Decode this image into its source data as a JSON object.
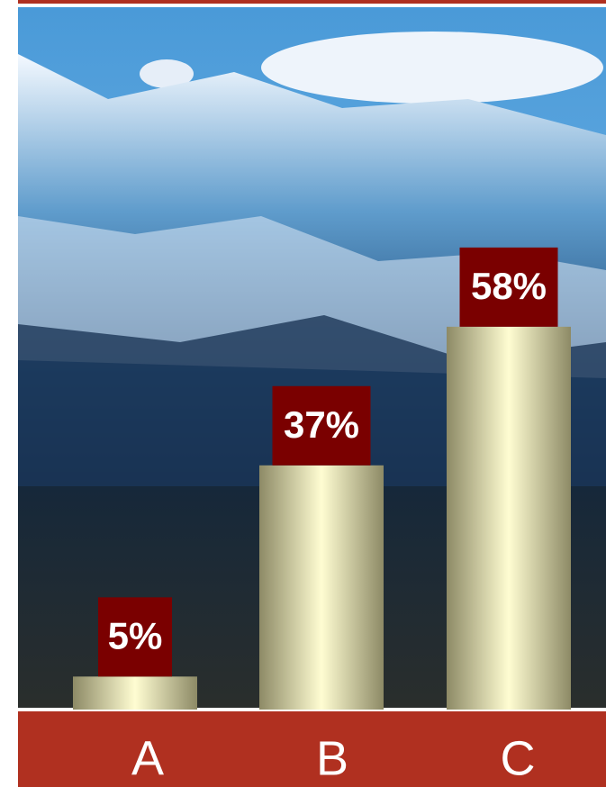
{
  "chart_data": {
    "type": "bar",
    "categories": [
      "A",
      "B",
      "C"
    ],
    "values": [
      5,
      37,
      58
    ],
    "value_labels": [
      "5%",
      "37%",
      "58%"
    ],
    "color": "#f6f2c2",
    "label_box_color": "#7a0000"
  }
}
